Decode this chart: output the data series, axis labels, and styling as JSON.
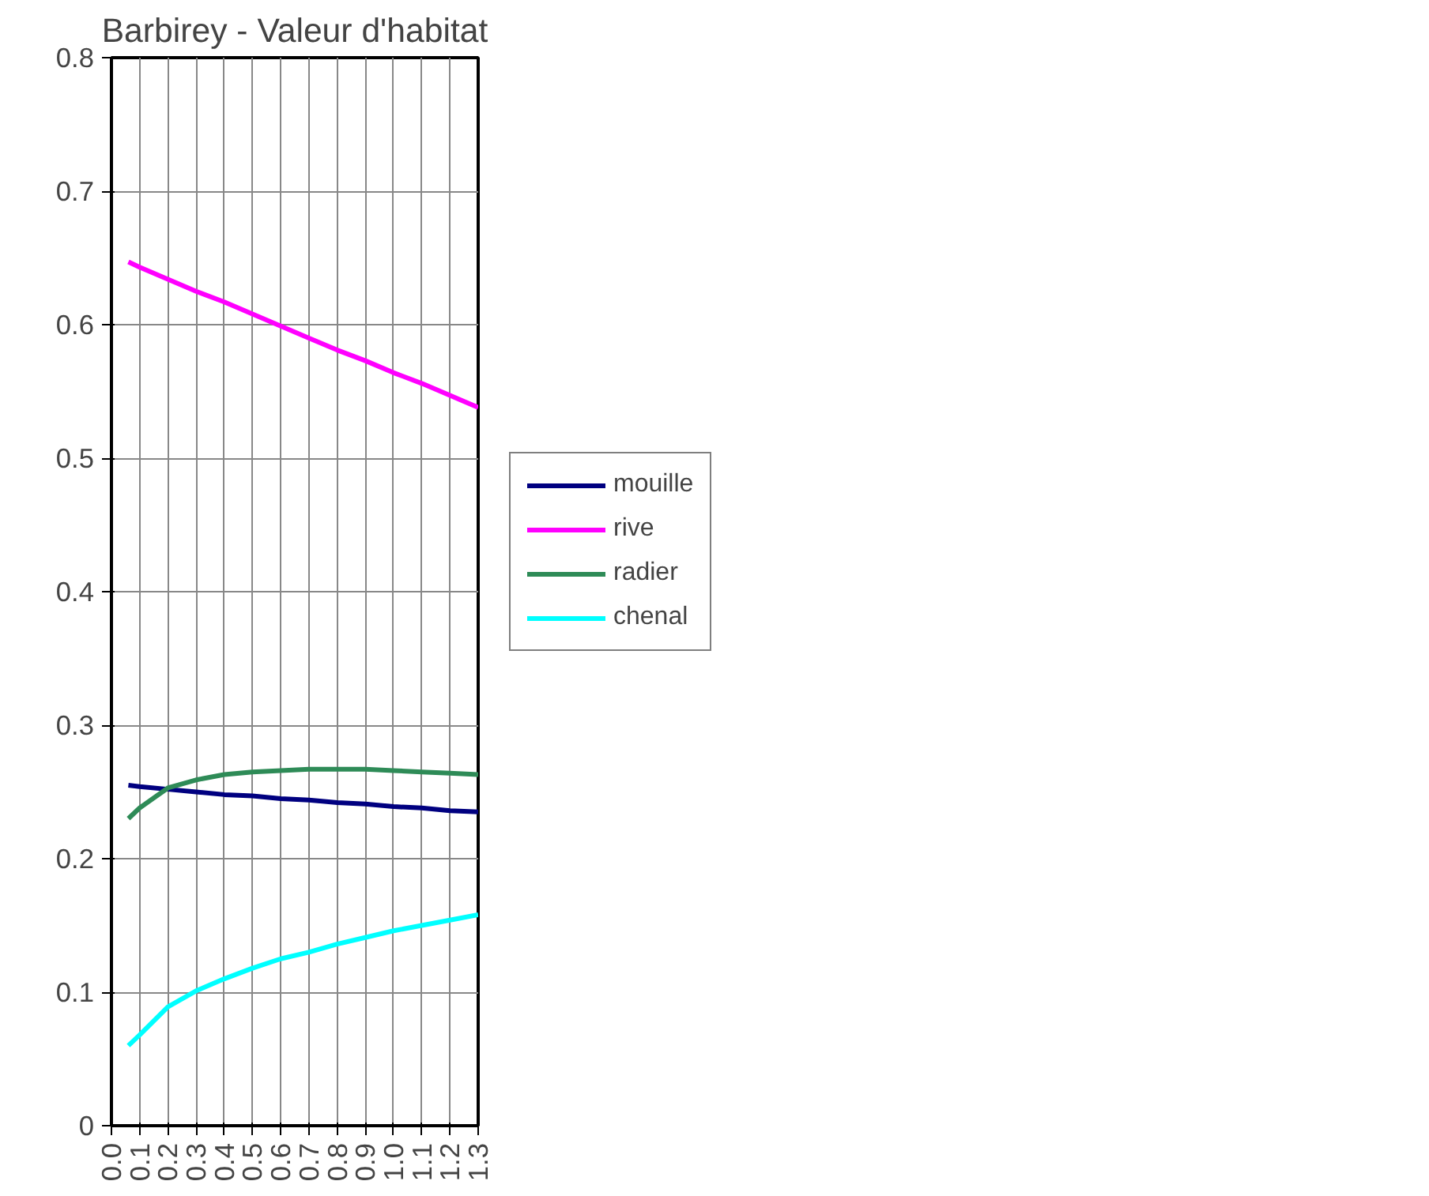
{
  "chart_data": {
    "type": "line",
    "title": "Barbirey - Valeur d'habitat",
    "x": [
      0.06,
      0.1,
      0.2,
      0.3,
      0.4,
      0.5,
      0.6,
      0.7,
      0.8,
      0.9,
      1.0,
      1.1,
      1.2,
      1.3
    ],
    "series": [
      {
        "name": "mouille",
        "color": "#000080",
        "values": [
          0.255,
          0.254,
          0.252,
          0.25,
          0.248,
          0.247,
          0.245,
          0.244,
          0.242,
          0.241,
          0.239,
          0.238,
          0.236,
          0.235
        ]
      },
      {
        "name": "rive",
        "color": "#ff00ff",
        "values": [
          0.647,
          0.643,
          0.634,
          0.625,
          0.617,
          0.608,
          0.599,
          0.59,
          0.581,
          0.573,
          0.564,
          0.556,
          0.547,
          0.538
        ]
      },
      {
        "name": "radier",
        "color": "#2e8b57",
        "values": [
          0.23,
          0.238,
          0.253,
          0.259,
          0.263,
          0.265,
          0.266,
          0.267,
          0.267,
          0.267,
          0.266,
          0.265,
          0.264,
          0.263
        ]
      },
      {
        "name": "chenal",
        "color": "#00ffff",
        "values": [
          0.06,
          0.068,
          0.089,
          0.101,
          0.11,
          0.118,
          0.125,
          0.13,
          0.136,
          0.141,
          0.146,
          0.15,
          0.154,
          0.158
        ]
      }
    ],
    "xlim": [
      0.0,
      1.3
    ],
    "xticks": [
      {
        "value": 0.0,
        "label": "0.0"
      },
      {
        "value": 0.1,
        "label": "0.1"
      },
      {
        "value": 0.2,
        "label": "0.2"
      },
      {
        "value": 0.3,
        "label": "0.3"
      },
      {
        "value": 0.4,
        "label": "0.4"
      },
      {
        "value": 0.5,
        "label": "0.5"
      },
      {
        "value": 0.6,
        "label": "0.6"
      },
      {
        "value": 0.7,
        "label": "0.7"
      },
      {
        "value": 0.8,
        "label": "0.8"
      },
      {
        "value": 0.9,
        "label": "0.9"
      },
      {
        "value": 1.0,
        "label": "1.0"
      },
      {
        "value": 1.1,
        "label": "1.1"
      },
      {
        "value": 1.2,
        "label": "1.2"
      },
      {
        "value": 1.3,
        "label": "1.3"
      }
    ],
    "ylim": [
      0,
      0.8
    ],
    "yticks": [
      0,
      0.1,
      0.2,
      0.3,
      0.4,
      0.5,
      0.6,
      0.7,
      0.8
    ],
    "grid": true,
    "legend": "right",
    "line_style": "solid",
    "marker": "none"
  }
}
